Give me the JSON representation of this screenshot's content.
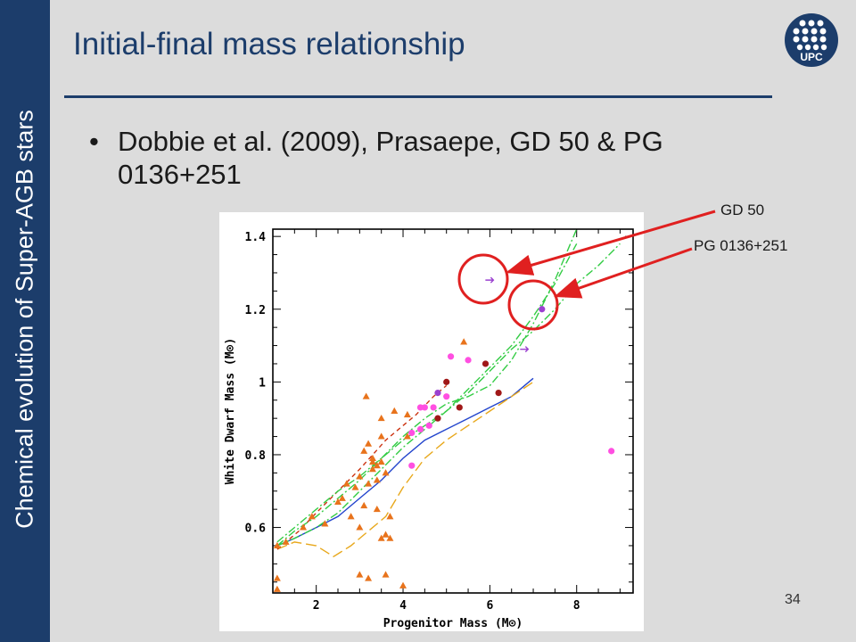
{
  "sidebar": {
    "text": "Chemical evolution of Super-AGB stars"
  },
  "slide": {
    "title": "Initial-final mass relationship",
    "bullet": "Dobbie et al. (2009), Prasaepe, GD 50 & PG 0136+251",
    "number": "34"
  },
  "logo": {
    "text": "UPC",
    "color": "#1c3d6b"
  },
  "annotations": [
    {
      "label": "GD 50",
      "target": "gd50-circle"
    },
    {
      "label": "PG 0136+251",
      "target": "pg0136-circle"
    }
  ],
  "chart_data": {
    "type": "scatter",
    "xlabel": "Progenitor Mass (M⊙)",
    "ylabel": "White Dwarf Mass (M⊙)",
    "xlim": [
      1,
      9.3
    ],
    "ylim": [
      0.42,
      1.42
    ],
    "xticks": [
      2,
      4,
      6,
      8
    ],
    "yticks": [
      0.6,
      0.8,
      1,
      1.2,
      1.4
    ],
    "xtick_labels": [
      "2",
      "4",
      "6",
      "8"
    ],
    "ytick_labels": [
      "0.6",
      "0.8",
      "1",
      "1.2",
      "1.4"
    ],
    "grid": false,
    "series": [
      {
        "marker": "triangle",
        "color": "#e8731c",
        "points": [
          [
            1.1,
            0.55
          ],
          [
            1.1,
            0.46
          ],
          [
            1.1,
            0.43
          ],
          [
            1.3,
            0.56
          ],
          [
            1.7,
            0.6
          ],
          [
            1.9,
            0.63
          ],
          [
            2.2,
            0.61
          ],
          [
            2.5,
            0.67
          ],
          [
            2.6,
            0.68
          ],
          [
            2.7,
            0.72
          ],
          [
            2.8,
            0.63
          ],
          [
            2.9,
            0.71
          ],
          [
            3.0,
            0.74
          ],
          [
            3.0,
            0.6
          ],
          [
            3.1,
            0.66
          ],
          [
            3.1,
            0.81
          ],
          [
            3.15,
            0.96
          ],
          [
            3.2,
            0.83
          ],
          [
            3.2,
            0.72
          ],
          [
            3.3,
            0.78
          ],
          [
            3.3,
            0.76
          ],
          [
            3.3,
            0.79
          ],
          [
            3.4,
            0.77
          ],
          [
            3.4,
            0.73
          ],
          [
            3.5,
            0.57
          ],
          [
            3.5,
            0.78
          ],
          [
            3.5,
            0.85
          ],
          [
            3.5,
            0.9
          ],
          [
            3.6,
            0.75
          ],
          [
            3.6,
            0.58
          ],
          [
            3.6,
            0.47
          ],
          [
            3.7,
            0.57
          ],
          [
            3.7,
            0.63
          ],
          [
            3.2,
            0.46
          ],
          [
            3.0,
            0.47
          ],
          [
            4.0,
            0.44
          ],
          [
            4.1,
            0.91
          ],
          [
            4.1,
            0.85
          ],
          [
            3.8,
            0.92
          ],
          [
            5.4,
            1.11
          ],
          [
            3.4,
            0.65
          ]
        ]
      },
      {
        "marker": "circle",
        "color": "#ff4fe1",
        "points": [
          [
            4.2,
            0.77
          ],
          [
            4.2,
            0.86
          ],
          [
            4.4,
            0.87
          ],
          [
            4.4,
            0.93
          ],
          [
            4.5,
            0.93
          ],
          [
            4.6,
            0.88
          ],
          [
            4.7,
            0.93
          ],
          [
            5.0,
            0.96
          ],
          [
            5.1,
            1.07
          ],
          [
            5.5,
            1.06
          ],
          [
            8.8,
            0.81
          ]
        ]
      },
      {
        "marker": "circle",
        "color": "#a01818",
        "points": [
          [
            4.8,
            0.9
          ],
          [
            5.0,
            1.0
          ],
          [
            5.3,
            0.93
          ],
          [
            5.9,
            1.05
          ],
          [
            6.2,
            0.97
          ]
        ]
      },
      {
        "marker": "circle",
        "color": "#9b40d0",
        "points": [
          [
            4.8,
            0.97
          ],
          [
            7.2,
            1.2
          ]
        ]
      },
      {
        "marker": "lower-limit-arrow",
        "color": "#9b40d0",
        "points": [
          [
            6.0,
            1.28
          ],
          [
            6.8,
            1.09
          ]
        ]
      }
    ],
    "curves": [
      {
        "style": "solid",
        "color": "#2244cc",
        "points": [
          [
            1.1,
            0.55
          ],
          [
            1.5,
            0.57
          ],
          [
            2.0,
            0.6
          ],
          [
            2.5,
            0.63
          ],
          [
            3.0,
            0.68
          ],
          [
            3.5,
            0.73
          ],
          [
            4.0,
            0.79
          ],
          [
            4.5,
            0.84
          ],
          [
            5.0,
            0.87
          ],
          [
            5.5,
            0.9
          ],
          [
            6.0,
            0.93
          ],
          [
            6.5,
            0.96
          ],
          [
            7.0,
            1.01
          ]
        ]
      },
      {
        "style": "long-dash",
        "color": "#e8a81c",
        "points": [
          [
            1.1,
            0.54
          ],
          [
            1.5,
            0.56
          ],
          [
            2.0,
            0.55
          ],
          [
            2.4,
            0.52
          ],
          [
            2.8,
            0.55
          ],
          [
            3.2,
            0.59
          ],
          [
            3.6,
            0.63
          ],
          [
            4.0,
            0.71
          ],
          [
            4.5,
            0.79
          ],
          [
            5.0,
            0.84
          ],
          [
            5.5,
            0.88
          ],
          [
            6.0,
            0.92
          ],
          [
            6.5,
            0.96
          ],
          [
            7.0,
            1.0
          ]
        ]
      },
      {
        "style": "short-dash",
        "color": "#cc3311",
        "points": [
          [
            1.1,
            0.54
          ],
          [
            1.6,
            0.59
          ],
          [
            2.0,
            0.64
          ],
          [
            2.5,
            0.7
          ],
          [
            3.0,
            0.76
          ],
          [
            3.3,
            0.8
          ],
          [
            3.6,
            0.84
          ],
          [
            4.0,
            0.88
          ],
          [
            4.3,
            0.91
          ],
          [
            4.7,
            0.96
          ],
          [
            5.0,
            0.99
          ]
        ]
      },
      {
        "style": "dash-dot",
        "color": "#33cc44",
        "points": [
          [
            1.1,
            0.55
          ],
          [
            1.5,
            0.59
          ],
          [
            2.0,
            0.63
          ],
          [
            2.5,
            0.68
          ],
          [
            3.0,
            0.73
          ],
          [
            3.5,
            0.79
          ],
          [
            4.0,
            0.85
          ],
          [
            4.5,
            0.9
          ],
          [
            5.0,
            0.94
          ],
          [
            5.5,
            0.96
          ],
          [
            6.0,
            0.99
          ],
          [
            6.5,
            1.06
          ],
          [
            7.0,
            1.16
          ],
          [
            7.5,
            1.28
          ],
          [
            8.0,
            1.42
          ]
        ]
      },
      {
        "style": "dash-dot",
        "color": "#33cc44",
        "points": [
          [
            1.1,
            0.56
          ],
          [
            1.5,
            0.6
          ],
          [
            2.0,
            0.65
          ],
          [
            2.5,
            0.7
          ],
          [
            3.0,
            0.74
          ],
          [
            3.5,
            0.79
          ],
          [
            4.0,
            0.84
          ],
          [
            4.5,
            0.88
          ],
          [
            5.0,
            0.92
          ],
          [
            5.5,
            0.97
          ],
          [
            6.0,
            1.03
          ],
          [
            6.5,
            1.09
          ],
          [
            7.0,
            1.14
          ],
          [
            7.5,
            1.2
          ],
          [
            8.0,
            1.27
          ],
          [
            8.5,
            1.32
          ],
          [
            9.0,
            1.38
          ]
        ]
      },
      {
        "style": "dash-dot",
        "color": "#33cc44",
        "points": [
          [
            1.1,
            0.55
          ],
          [
            1.5,
            0.57
          ],
          [
            2.0,
            0.6
          ],
          [
            2.5,
            0.64
          ],
          [
            3.0,
            0.7
          ],
          [
            3.5,
            0.76
          ],
          [
            4.0,
            0.82
          ],
          [
            4.5,
            0.87
          ],
          [
            5.0,
            0.92
          ],
          [
            5.5,
            0.98
          ],
          [
            6.0,
            1.04
          ],
          [
            6.5,
            1.1
          ],
          [
            7.0,
            1.18
          ],
          [
            7.5,
            1.27
          ],
          [
            8.0,
            1.38
          ]
        ]
      }
    ]
  }
}
